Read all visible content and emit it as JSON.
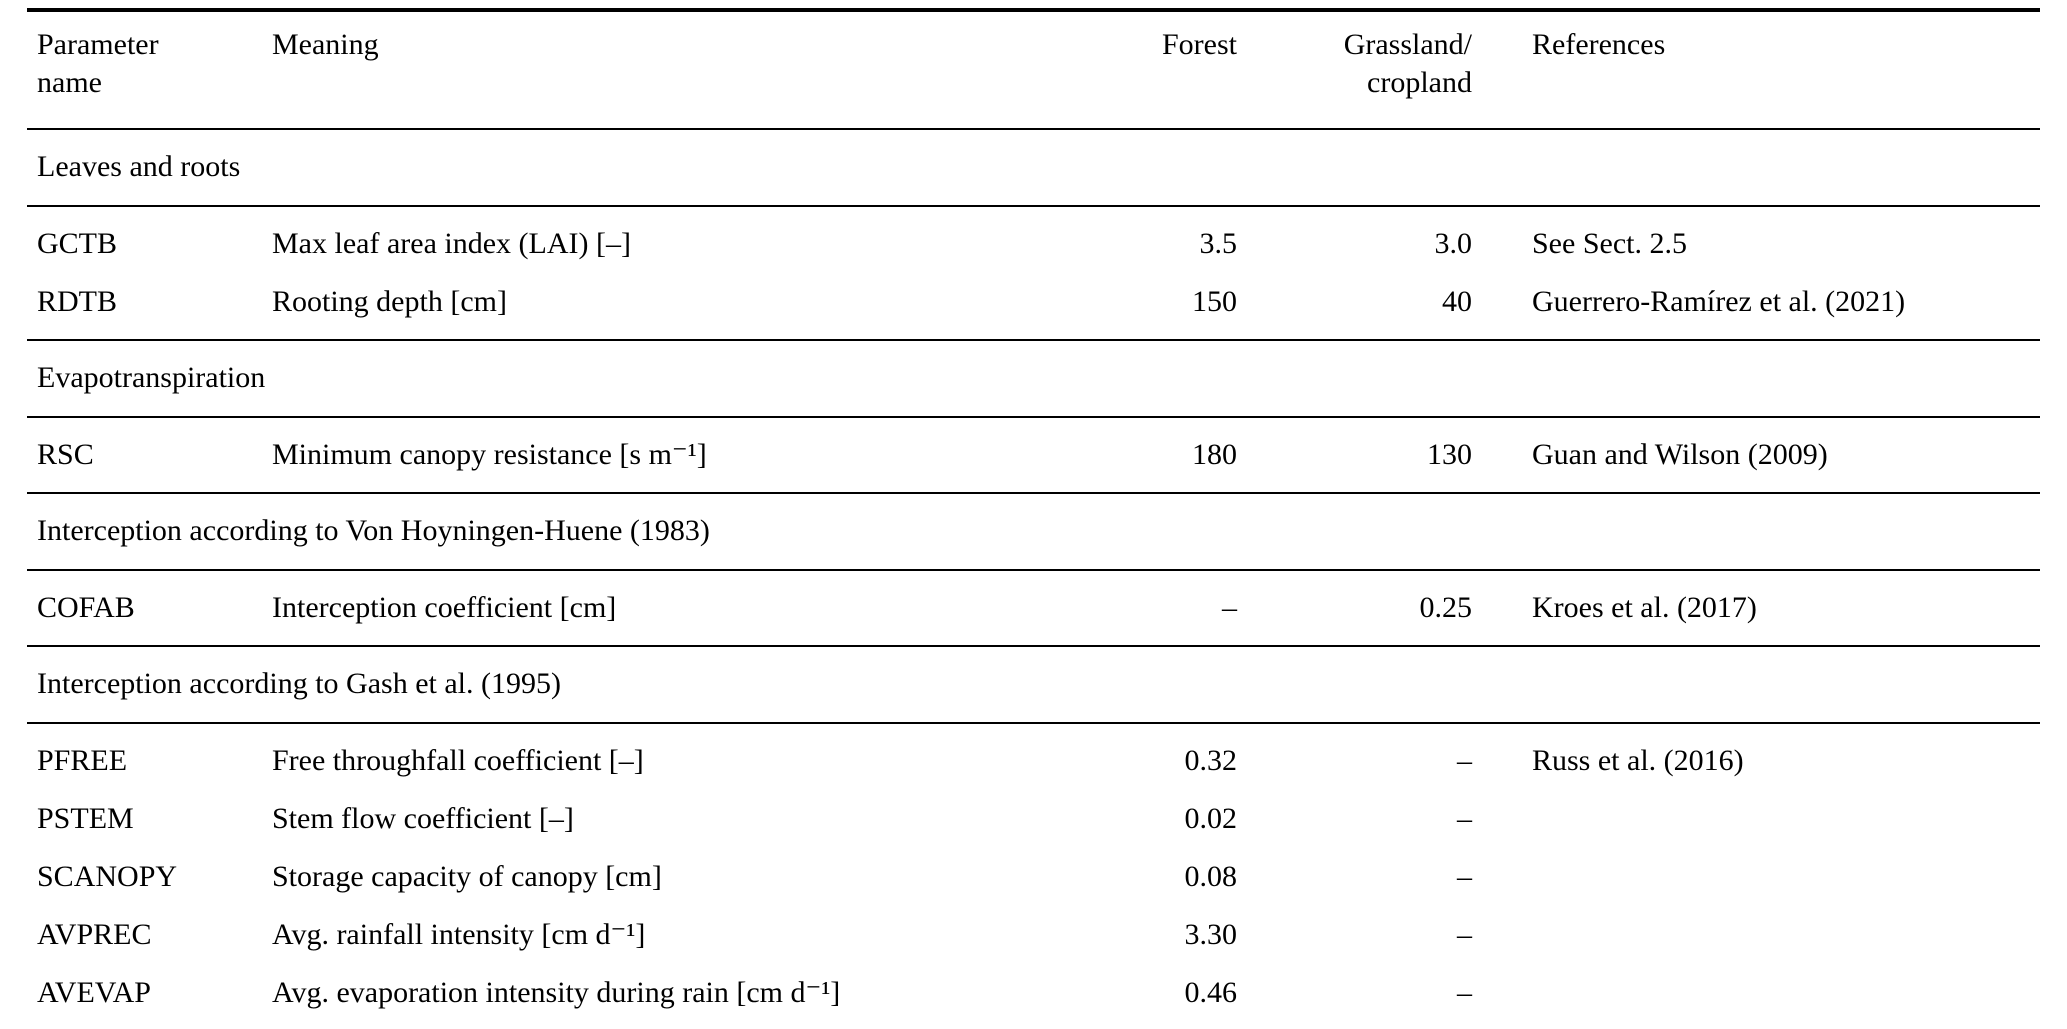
{
  "table": {
    "headers": {
      "parameter": "Parameter\nname",
      "meaning": "Meaning",
      "forest": "Forest",
      "grassland": "Grassland/\ncropland",
      "references": "References"
    },
    "sections": [
      {
        "title": "Leaves and roots",
        "rows": [
          {
            "param": "GCTB",
            "meaning": "Max leaf area index (LAI) [–]",
            "forest": "3.5",
            "grassland": "3.0",
            "ref": "See Sect. 2.5"
          },
          {
            "param": "RDTB",
            "meaning": "Rooting depth [cm]",
            "forest": "150",
            "grassland": "40",
            "ref": "Guerrero-Ramírez et al. (2021)"
          }
        ]
      },
      {
        "title": "Evapotranspiration",
        "rows": [
          {
            "param": "RSC",
            "meaning": "Minimum canopy resistance [s m⁻¹]",
            "forest": "180",
            "grassland": "130",
            "ref": "Guan and Wilson (2009)"
          }
        ]
      },
      {
        "title": "Interception according to Von Hoyningen-Huene (1983)",
        "rows": [
          {
            "param": "COFAB",
            "meaning": "Interception coefficient [cm]",
            "forest": "–",
            "grassland": "0.25",
            "ref": "Kroes et al. (2017)"
          }
        ]
      },
      {
        "title": "Interception according to Gash et al. (1995)",
        "rows": [
          {
            "param": "PFREE",
            "meaning": "Free throughfall coefficient [–]",
            "forest": "0.32",
            "grassland": "–",
            "ref": "Russ et al. (2016)"
          },
          {
            "param": "PSTEM",
            "meaning": "Stem flow coefficient [–]",
            "forest": "0.02",
            "grassland": "–",
            "ref": ""
          },
          {
            "param": "SCANOPY",
            "meaning": "Storage capacity of canopy [cm]",
            "forest": "0.08",
            "grassland": "–",
            "ref": ""
          },
          {
            "param": "AVPREC",
            "meaning": "Avg. rainfall intensity [cm d⁻¹]",
            "forest": "3.30",
            "grassland": "–",
            "ref": ""
          },
          {
            "param": "AVEVAP",
            "meaning": "Avg. evaporation intensity during rain [cm d⁻¹]",
            "forest": "0.46",
            "grassland": "–",
            "ref": ""
          }
        ]
      }
    ]
  }
}
